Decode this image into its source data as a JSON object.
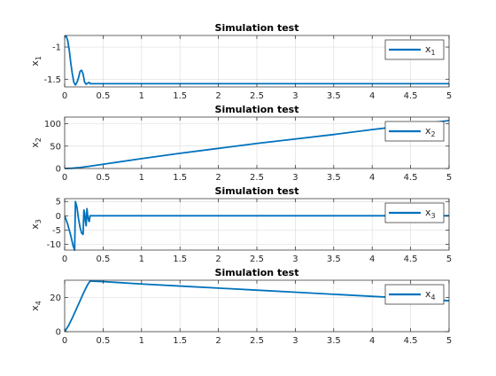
{
  "chart_data": [
    {
      "type": "line",
      "title": "Simulation test",
      "ylabel": "x_1",
      "xlim": [
        0,
        5
      ],
      "ylim": [
        -1.62,
        -0.82
      ],
      "xticks": [
        0,
        0.5,
        1,
        1.5,
        2,
        2.5,
        3,
        3.5,
        4,
        4.5,
        5
      ],
      "xtick_labels": [
        "0",
        "0.5",
        "1",
        "1.5",
        "2",
        "2.5",
        "3",
        "3.5",
        "4",
        "4.5",
        "5"
      ],
      "yticks": [
        -1.5,
        -1
      ],
      "ytick_labels": [
        "-1.5",
        "-1"
      ],
      "grid": true,
      "legend": "top-right",
      "series": [
        {
          "name": "x_1",
          "color": "#0072BD",
          "x": [
            0,
            0.02,
            0.04,
            0.06,
            0.08,
            0.1,
            0.12,
            0.14,
            0.16,
            0.18,
            0.2,
            0.22,
            0.24,
            0.26,
            0.28,
            0.3,
            0.32,
            0.33,
            5
          ],
          "y": [
            -0.84,
            -0.83,
            -0.9,
            -1.05,
            -1.25,
            -1.42,
            -1.55,
            -1.59,
            -1.55,
            -1.48,
            -1.38,
            -1.36,
            -1.42,
            -1.55,
            -1.58,
            -1.56,
            -1.55,
            -1.57,
            -1.57
          ]
        }
      ]
    },
    {
      "type": "line",
      "title": "Simulation test",
      "ylabel": "x_2",
      "xlim": [
        0,
        5
      ],
      "ylim": [
        0,
        115
      ],
      "xticks": [
        0,
        0.5,
        1,
        1.5,
        2,
        2.5,
        3,
        3.5,
        4,
        4.5,
        5
      ],
      "xtick_labels": [
        "0",
        "0.5",
        "1",
        "1.5",
        "2",
        "2.5",
        "3",
        "3.5",
        "4",
        "4.5",
        "5"
      ],
      "yticks": [
        0,
        50,
        100
      ],
      "ytick_labels": [
        "0",
        "50",
        "100"
      ],
      "grid": true,
      "legend": "top-right",
      "series": [
        {
          "name": "x_2",
          "color": "#0072BD",
          "x": [
            0,
            0.1,
            0.2,
            0.3,
            0.5,
            1,
            1.5,
            2,
            2.5,
            3,
            3.5,
            4,
            4.5,
            5
          ],
          "y": [
            0,
            0.6,
            2.2,
            4.5,
            9.5,
            22,
            34,
            45,
            56,
            66,
            76,
            87,
            97,
            107
          ]
        }
      ]
    },
    {
      "type": "line",
      "title": "Simulation test",
      "ylabel": "x_3",
      "xlim": [
        0,
        5
      ],
      "ylim": [
        -12,
        6
      ],
      "xticks": [
        0,
        0.5,
        1,
        1.5,
        2,
        2.5,
        3,
        3.5,
        4,
        4.5,
        5
      ],
      "xtick_labels": [
        "0",
        "0.5",
        "1",
        "1.5",
        "2",
        "2.5",
        "3",
        "3.5",
        "4",
        "4.5",
        "5"
      ],
      "yticks": [
        -10,
        -5,
        0,
        5
      ],
      "ytick_labels": [
        "-10",
        "-5",
        "0",
        "5"
      ],
      "grid": true,
      "legend": "top-right",
      "series": [
        {
          "name": "x_3",
          "color": "#0072BD",
          "x": [
            0,
            0.04,
            0.08,
            0.11,
            0.13,
            0.14,
            0.16,
            0.18,
            0.2,
            0.22,
            0.24,
            0.25,
            0.26,
            0.27,
            0.28,
            0.29,
            0.3,
            0.31,
            0.32,
            0.33,
            5
          ],
          "y": [
            0,
            -3,
            -7,
            -10.5,
            -12,
            5,
            3,
            -1,
            -4,
            -6,
            -6.5,
            2,
            1,
            -2,
            -3.5,
            2.5,
            0,
            -1.5,
            -2,
            0,
            0
          ]
        }
      ]
    },
    {
      "type": "line",
      "title": "Simulation test",
      "ylabel": "x_4",
      "xlim": [
        0,
        5
      ],
      "ylim": [
        0,
        30
      ],
      "xticks": [
        0,
        0.5,
        1,
        1.5,
        2,
        2.5,
        3,
        3.5,
        4,
        4.5,
        5
      ],
      "xtick_labels": [
        "0",
        "0.5",
        "1",
        "1.5",
        "2",
        "2.5",
        "3",
        "3.5",
        "4",
        "4.5",
        "5"
      ],
      "yticks": [
        0,
        20
      ],
      "ytick_labels": [
        "0",
        "20"
      ],
      "grid": true,
      "legend": "top-right",
      "series": [
        {
          "name": "x_4",
          "color": "#0072BD",
          "x": [
            0,
            0.05,
            0.1,
            0.15,
            0.2,
            0.25,
            0.3,
            0.33,
            0.5,
            1,
            1.5,
            2,
            2.5,
            3,
            3.5,
            4,
            4.5,
            5
          ],
          "y": [
            0,
            3.5,
            8,
            13,
            18,
            23,
            27.5,
            29.5,
            29.2,
            27.8,
            26.6,
            25.4,
            24.2,
            23,
            21.8,
            20.6,
            19.4,
            18
          ]
        }
      ]
    }
  ]
}
